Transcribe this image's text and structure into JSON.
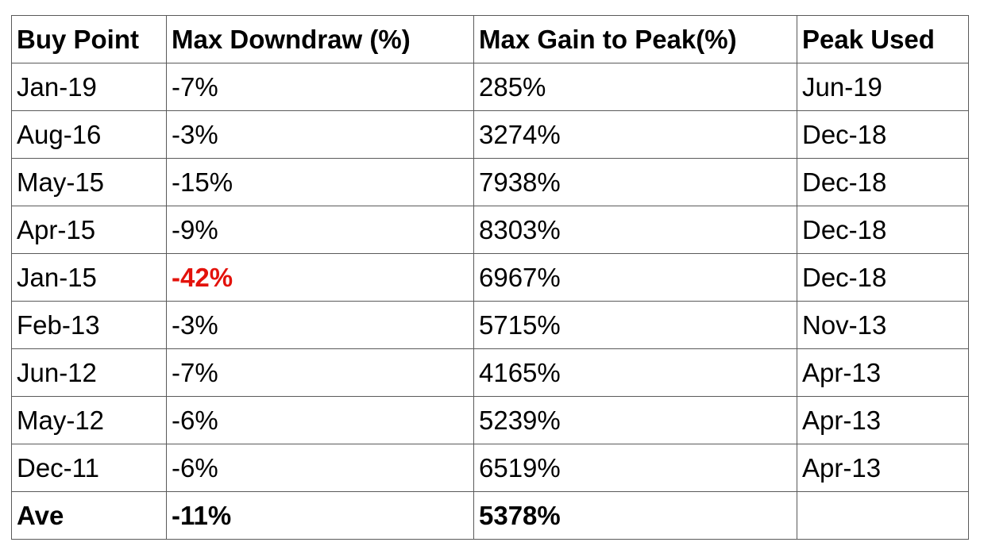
{
  "table": {
    "headers": [
      "Buy Point",
      "Max Downdraw (%)",
      "Max Gain to Peak(%)",
      "Peak Used"
    ],
    "rows": [
      {
        "buy_point": "Jan-19",
        "max_downdraw": "-7%",
        "max_gain": "285%",
        "peak_used": "Jun-19"
      },
      {
        "buy_point": "Aug-16",
        "max_downdraw": "-3%",
        "max_gain": "3274%",
        "peak_used": "Dec-18"
      },
      {
        "buy_point": "May-15",
        "max_downdraw": "-15%",
        "max_gain": "7938%",
        "peak_used": "Dec-18"
      },
      {
        "buy_point": "Apr-15",
        "max_downdraw": "-9%",
        "max_gain": "8303%",
        "peak_used": "Dec-18"
      },
      {
        "buy_point": "Jan-15",
        "max_downdraw": "-42%",
        "max_gain": "6967%",
        "peak_used": "Dec-18"
      },
      {
        "buy_point": "Feb-13",
        "max_downdraw": "-3%",
        "max_gain": "5715%",
        "peak_used": "Nov-13"
      },
      {
        "buy_point": "Jun-12",
        "max_downdraw": "-7%",
        "max_gain": "4165%",
        "peak_used": "Apr-13"
      },
      {
        "buy_point": "May-12",
        "max_downdraw": "-6%",
        "max_gain": "5239%",
        "peak_used": "Apr-13"
      },
      {
        "buy_point": "Dec-11",
        "max_downdraw": "-6%",
        "max_gain": "6519%",
        "peak_used": "Apr-13"
      }
    ],
    "average": {
      "label": "Ave",
      "max_downdraw": "-11%",
      "max_gain": "5378%",
      "peak_used": ""
    },
    "highlight_color": "#e3120b"
  }
}
